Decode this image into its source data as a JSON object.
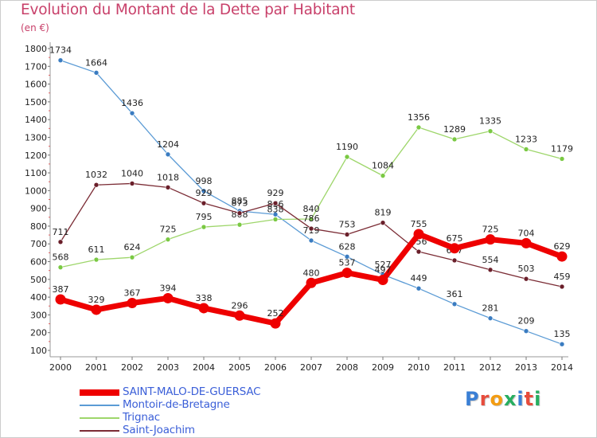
{
  "title": "Evolution du Montant de la Dette par Habitant",
  "unit": "(en €)",
  "logo": {
    "text": "Proxiti",
    "letter_colors": [
      "#3a7fd5",
      "#e74c3c",
      "#f39c12",
      "#27ae60",
      "#3a7fd5",
      "#e74c3c",
      "#27ae60"
    ]
  },
  "chart_data": {
    "type": "line",
    "x": [
      "2000",
      "2001",
      "2002",
      "2003",
      "2004",
      "2005",
      "2006",
      "2007",
      "2008",
      "2009",
      "2010",
      "2011",
      "2012",
      "2013",
      "2014"
    ],
    "ylim": [
      100,
      1800
    ],
    "yticks": [
      100,
      200,
      300,
      400,
      500,
      600,
      700,
      800,
      900,
      1000,
      1100,
      1200,
      1300,
      1400,
      1500,
      1600,
      1700,
      1800
    ],
    "grid": false,
    "legend_position": "bottom-left",
    "series": [
      {
        "name": "Montoir-de-Bretagne",
        "color": "#5b9bd5",
        "dot": "#3a7cc1",
        "width": 1.3,
        "values": [
          1734,
          1664,
          1436,
          1204,
          998,
          885,
          866,
          719,
          628,
          527,
          449,
          361,
          281,
          209,
          135
        ]
      },
      {
        "name": "Trignac",
        "color": "#9ed66b",
        "dot": "#7ac943",
        "width": 1.3,
        "values": [
          568,
          611,
          624,
          725,
          795,
          808,
          838,
          840,
          1190,
          1084,
          1356,
          1289,
          1335,
          1233,
          1179
        ]
      },
      {
        "name": "Saint-Joachim",
        "color": "#7b2c35",
        "dot": "#6a1f2a",
        "width": 1.3,
        "values": [
          711,
          1032,
          1040,
          1018,
          929,
          873,
          929,
          786,
          753,
          819,
          656,
          607,
          554,
          503,
          459
        ]
      },
      {
        "name": "SAINT-MALO-DE-GUERSAC",
        "color": "#ee0000",
        "dot": "#ee0000",
        "width": 7,
        "values": [
          387,
          329,
          367,
          394,
          338,
          296,
          252,
          480,
          537,
          497,
          755,
          675,
          725,
          704,
          629
        ]
      }
    ],
    "legend_order": [
      "SAINT-MALO-DE-GUERSAC",
      "Montoir-de-Bretagne",
      "Trignac",
      "Saint-Joachim"
    ]
  }
}
